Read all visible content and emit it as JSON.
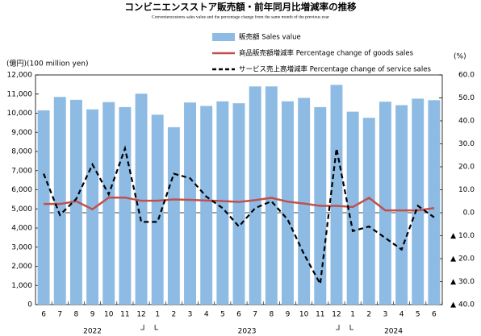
{
  "chart_data": {
    "type": "bar_line",
    "title": "コンビニエンスストア販売額・前年同月比増減率の推移",
    "subtitle": "Conveniencestores sales value and the percentage change from the same month of the previous year",
    "y_label": "(億円)(100 million yen)",
    "y2_label": "(%)",
    "categories": [
      "6",
      "7",
      "8",
      "9",
      "10",
      "11",
      "12",
      "1",
      "2",
      "3",
      "4",
      "5",
      "6",
      "7",
      "8",
      "9",
      "10",
      "11",
      "12",
      "1",
      "2",
      "3",
      "4",
      "5",
      "6"
    ],
    "year_labels": [
      "2022",
      "2023",
      "2024"
    ],
    "series": [
      {
        "name": "販売額 Sales value",
        "kind": "bar",
        "color": "#8dbbe3",
        "values": [
          10150,
          10850,
          10700,
          10200,
          10580,
          10320,
          11020,
          9920,
          9270,
          10560,
          10380,
          10620,
          10520,
          11400,
          11400,
          10620,
          10800,
          10320,
          11480,
          10080,
          9760,
          10600,
          10420,
          10760,
          10680
        ]
      },
      {
        "name": "商品販売額増減率 Percentage change of goods sales",
        "kind": "line",
        "axis": "y2",
        "color": "#c0504d",
        "values": [
          3.8,
          3.8,
          5.0,
          1.5,
          6.6,
          6.6,
          5.2,
          5.2,
          5.8,
          5.6,
          5.3,
          5.1,
          4.7,
          5.5,
          6.5,
          4.8,
          4.0,
          3.0,
          3.0,
          2.5,
          6.5,
          1.0,
          1.0,
          1.0,
          2.0
        ]
      },
      {
        "name": "サービス売上高増減率 Percentage change of service sales",
        "kind": "dashed",
        "axis": "y2",
        "color": "#000000",
        "values": [
          17,
          -1,
          6,
          21,
          8,
          28,
          -4,
          -4,
          17,
          15,
          7,
          2,
          -6,
          2,
          5,
          -3,
          -18,
          -31,
          28,
          -8,
          -6,
          -11,
          -16,
          3,
          -2
        ]
      }
    ],
    "ylim": [
      0,
      12000
    ],
    "yticks": [
      0,
      {
        "value": 1000,
        "label": "1,000"
      },
      {
        "value": 2000,
        "label": "2,000"
      },
      {
        "value": 3000,
        "label": "3,000"
      },
      {
        "value": 4000,
        "label": "4,000"
      },
      {
        "value": 5000,
        "label": "5,000"
      },
      {
        "value": 6000,
        "label": "6,000"
      },
      {
        "value": 7000,
        "label": "7,000"
      },
      {
        "value": 8000,
        "label": "8,000"
      },
      {
        "value": 9000,
        "label": "9,000"
      },
      {
        "value": 10000,
        "label": "10,000"
      },
      {
        "value": 11000,
        "label": "11,000"
      },
      {
        "value": 12000,
        "label": "12,000"
      }
    ],
    "y2lim": [
      -40,
      60
    ],
    "y2ticks": [
      {
        "value": -40,
        "label": "▲ 40.0"
      },
      {
        "value": -30,
        "label": "▲ 30.0"
      },
      {
        "value": -20,
        "label": "▲ 20.0"
      },
      {
        "value": -10,
        "label": "▲ 10.0"
      },
      {
        "value": 0,
        "label": "0.0"
      },
      {
        "value": 10,
        "label": "10.0"
      },
      {
        "value": 20,
        "label": "20.0"
      },
      {
        "value": 30,
        "label": "30.0"
      },
      {
        "value": 40,
        "label": "40.0"
      },
      {
        "value": 50,
        "label": "50.0"
      },
      {
        "value": 60,
        "label": "60.0"
      }
    ]
  }
}
